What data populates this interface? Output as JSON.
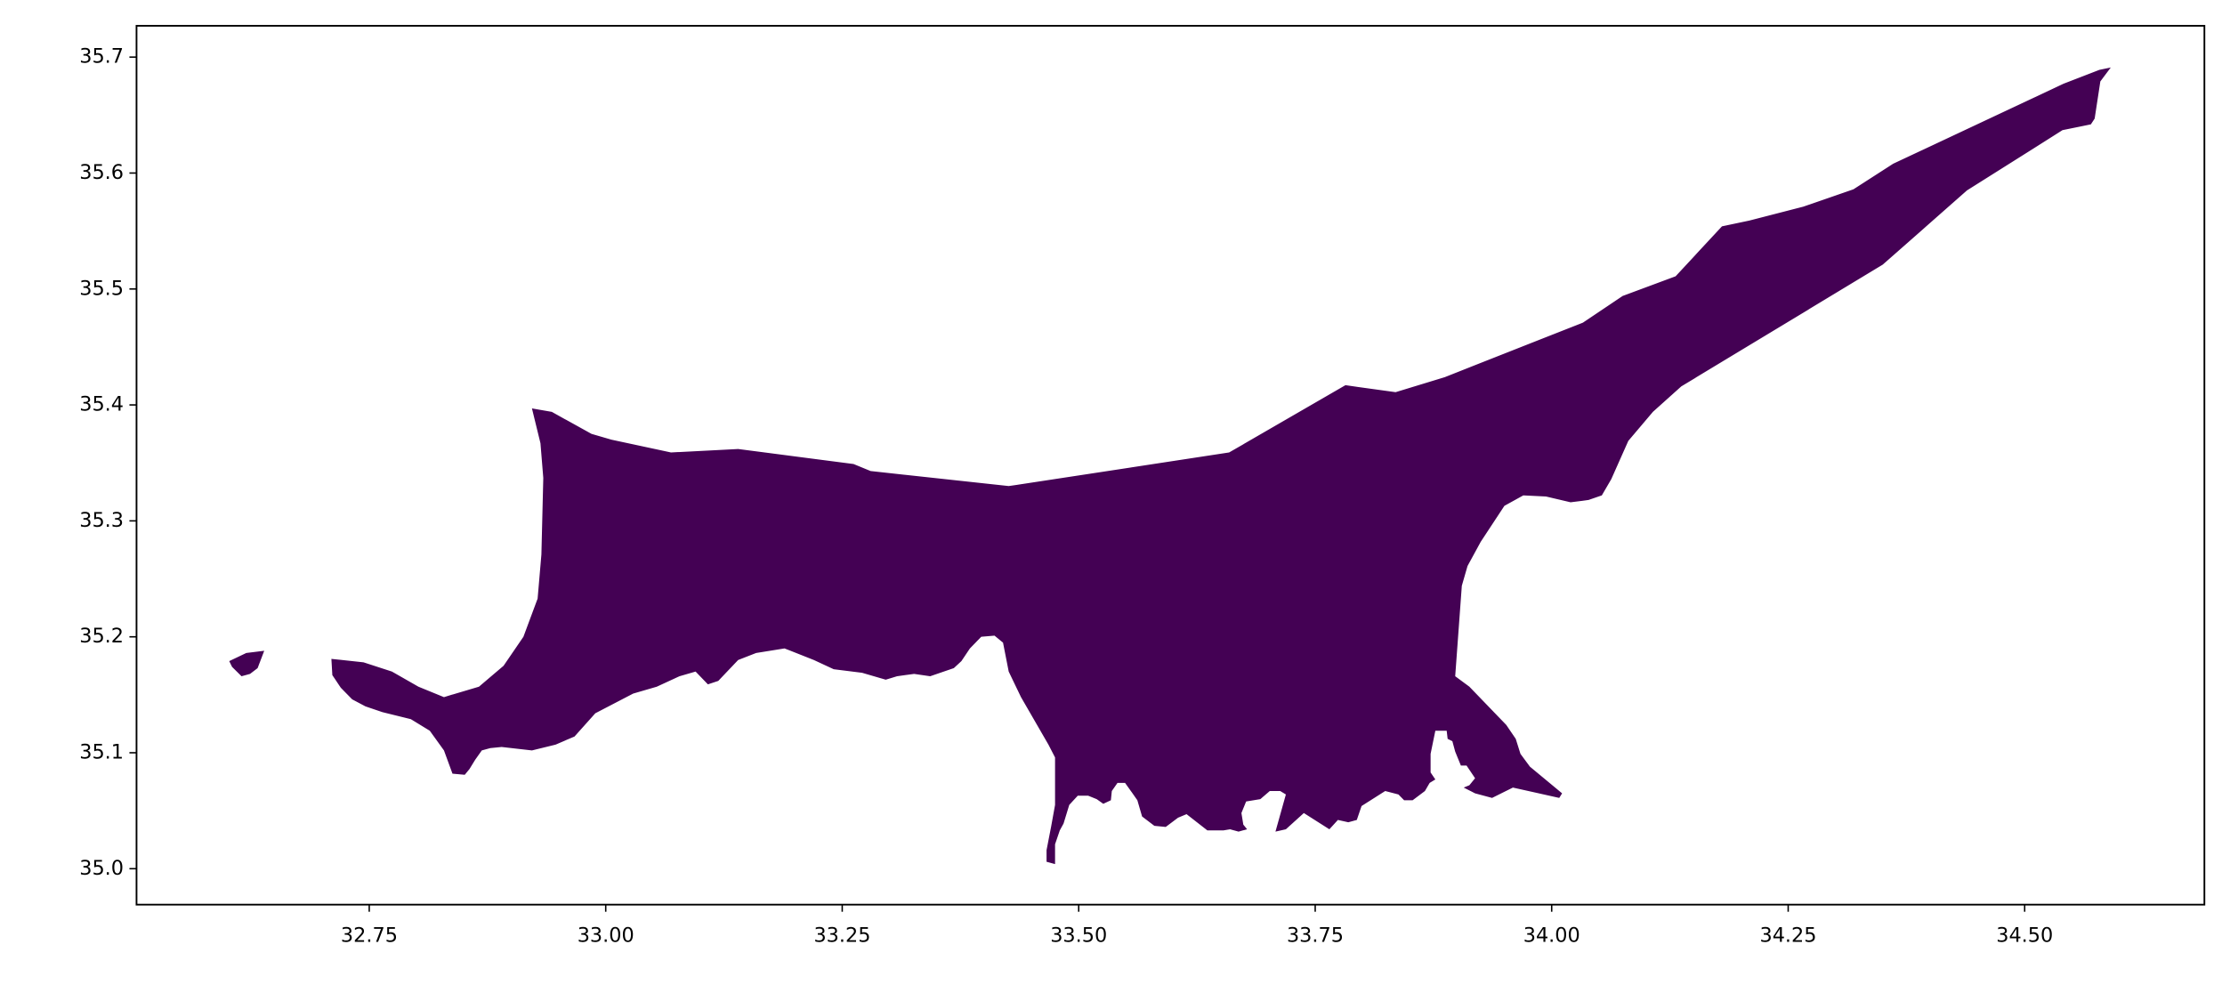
{
  "chart_data": {
    "type": "map",
    "xlim": [
      32.504,
      34.69
    ],
    "ylim": [
      34.969,
      35.727
    ],
    "xticks": [
      32.75,
      {
        "value": 33,
        "label": "33.00"
      },
      33.25,
      {
        "value": 33.5,
        "label": "33.50"
      },
      33.75,
      {
        "value": 34,
        "label": "34.00"
      },
      34.25,
      {
        "value": 34.5,
        "label": "34.50"
      }
    ],
    "yticks": [
      {
        "value": 35,
        "label": "35.0"
      },
      35.1,
      35.2,
      35.3,
      35.4,
      35.5,
      35.6,
      35.7
    ],
    "shapes": [
      {
        "color": "#440154",
        "x": [
          32.922,
          32.943,
          32.985,
          33.006,
          33.069,
          33.14,
          33.262,
          33.28,
          33.426,
          33.659,
          33.782,
          33.835,
          33.887,
          34.033,
          34.075,
          34.131,
          34.18,
          34.209,
          34.266,
          34.319,
          34.361,
          34.541,
          34.579,
          34.591,
          34.58,
          34.574,
          34.57,
          34.558,
          34.54,
          34.439,
          34.35,
          34.137,
          34.107,
          34.081,
          34.063,
          34.053,
          34.039,
          34.02,
          33.994,
          33.97,
          33.95,
          33.925,
          33.911,
          33.905,
          33.898,
          33.913,
          33.952,
          33.962,
          33.967,
          33.977,
          34.011,
          34.008,
          33.959,
          33.937,
          33.919,
          33.907,
          33.913,
          33.919,
          33.91,
          33.904,
          33.898,
          33.895,
          33.89,
          33.889,
          33.877,
          33.872,
          33.872,
          33.877,
          33.871,
          33.866,
          33.853,
          33.844,
          33.838,
          33.824,
          33.799,
          33.794,
          33.785,
          33.774,
          33.765,
          33.738,
          33.719,
          33.708,
          33.719,
          33.713,
          33.702,
          33.692,
          33.677,
          33.672,
          33.674,
          33.678,
          33.669,
          33.66,
          33.653,
          33.636,
          33.614,
          33.605,
          33.592,
          33.58,
          33.567,
          33.562,
          33.556,
          33.549,
          33.541,
          33.535,
          33.534,
          33.526,
          33.519,
          33.51,
          33.499,
          33.49,
          33.484,
          33.48,
          33.475,
          33.475,
          33.466,
          33.466,
          33.471,
          33.475,
          33.475,
          33.468,
          33.439,
          33.426,
          33.42,
          33.411,
          33.397,
          33.385,
          33.376,
          33.368,
          33.343,
          33.326,
          33.308,
          33.296,
          33.271,
          33.241,
          33.22,
          33.189,
          33.159,
          33.14,
          33.119,
          33.108,
          33.095,
          33.078,
          33.054,
          33.029,
          32.989,
          32.967,
          32.947,
          32.922,
          32.89,
          32.878,
          32.869,
          32.862,
          32.856,
          32.851,
          32.838,
          32.829,
          32.814,
          32.794,
          32.764,
          32.746,
          32.732,
          32.72,
          32.711,
          32.71,
          32.744,
          32.774,
          32.802,
          32.829,
          32.866,
          32.892,
          32.913,
          32.928,
          32.932,
          32.934,
          32.931
        ],
        "y": [
          35.397,
          35.394,
          35.375,
          35.37,
          35.359,
          35.362,
          35.349,
          35.343,
          35.33,
          35.359,
          35.417,
          35.411,
          35.424,
          35.471,
          35.494,
          35.511,
          35.554,
          35.559,
          35.571,
          35.586,
          35.608,
          35.677,
          35.689,
          35.691,
          35.679,
          35.647,
          35.642,
          35.64,
          35.637,
          35.585,
          35.521,
          35.416,
          35.394,
          35.369,
          35.336,
          35.322,
          35.318,
          35.316,
          35.321,
          35.322,
          35.313,
          35.282,
          35.261,
          35.244,
          35.166,
          35.157,
          35.124,
          35.112,
          35.099,
          35.088,
          35.065,
          35.061,
          35.07,
          35.061,
          35.065,
          35.07,
          35.072,
          35.078,
          35.089,
          35.089,
          35.101,
          35.11,
          35.112,
          35.119,
          35.119,
          35.099,
          35.083,
          35.077,
          35.074,
          35.067,
          35.059,
          35.059,
          35.064,
          35.067,
          35.054,
          35.042,
          35.04,
          35.042,
          35.034,
          35.048,
          35.034,
          35.032,
          35.064,
          35.067,
          35.067,
          35.06,
          35.058,
          35.048,
          35.038,
          35.034,
          35.032,
          35.034,
          35.033,
          35.033,
          35.047,
          35.044,
          35.036,
          35.037,
          35.045,
          35.059,
          35.066,
          35.074,
          35.074,
          35.067,
          35.059,
          35.056,
          35.06,
          35.063,
          35.063,
          35.055,
          35.039,
          35.033,
          35.021,
          35.004,
          35.006,
          35.016,
          35.037,
          35.055,
          35.096,
          35.107,
          35.148,
          35.17,
          35.195,
          35.201,
          35.2,
          35.19,
          35.179,
          35.173,
          35.166,
          35.168,
          35.166,
          35.163,
          35.169,
          35.172,
          35.18,
          35.19,
          35.186,
          35.18,
          35.162,
          35.159,
          35.17,
          35.166,
          35.157,
          35.151,
          35.134,
          35.114,
          35.107,
          35.102,
          35.105,
          35.104,
          35.102,
          35.094,
          35.086,
          35.081,
          35.082,
          35.102,
          35.119,
          35.129,
          35.135,
          35.14,
          35.146,
          35.156,
          35.167,
          35.181,
          35.178,
          35.17,
          35.157,
          35.148,
          35.157,
          35.175,
          35.2,
          35.233,
          35.271,
          35.337,
          35.367
        ]
      },
      {
        "color": "#440154",
        "x": [
          32.602,
          32.62,
          32.639,
          32.632,
          32.624,
          32.615,
          32.605
        ],
        "y": [
          35.179,
          35.186,
          35.188,
          35.173,
          35.168,
          35.166,
          35.174
        ]
      }
    ]
  }
}
